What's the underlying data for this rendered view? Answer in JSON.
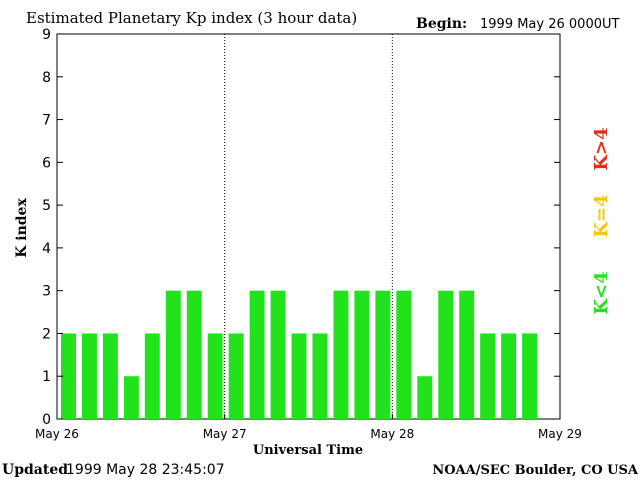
{
  "header": {
    "title": "Estimated Planetary Kp index (3 hour data)",
    "begin_label": "Begin:",
    "begin_value": "1999 May 26 0000UT"
  },
  "footer": {
    "updated_label": "Updated",
    "updated_value": "1999 May 28 23:45:07",
    "source": "NOAA/SEC Boulder, CO USA"
  },
  "legend": {
    "items": [
      {
        "label": "K<4",
        "color": "#22e31b"
      },
      {
        "label": "K=4",
        "color": "#f4c612"
      },
      {
        "label": "K>4",
        "color": "#e62c17"
      }
    ]
  },
  "chart_data": {
    "type": "bar",
    "title": "Estimated Planetary Kp index (3 hour data)",
    "xlabel": "Universal Time",
    "ylabel": "K index",
    "ylim": [
      0,
      9
    ],
    "yticks": [
      0,
      1,
      2,
      3,
      4,
      5,
      6,
      7,
      8,
      9
    ],
    "xtick_labels": [
      "May 26",
      "May 27",
      "May 28",
      "May 29"
    ],
    "day_dividers": true,
    "bins_per_day": 8,
    "values": [
      2,
      2,
      2,
      1,
      2,
      3,
      3,
      2,
      2,
      3,
      3,
      2,
      2,
      3,
      3,
      3,
      3,
      1,
      3,
      3,
      2,
      2,
      2
    ],
    "colors": {
      "low": "#22e31b",
      "equal4": "#f4c612",
      "high": "#e62c17"
    }
  }
}
